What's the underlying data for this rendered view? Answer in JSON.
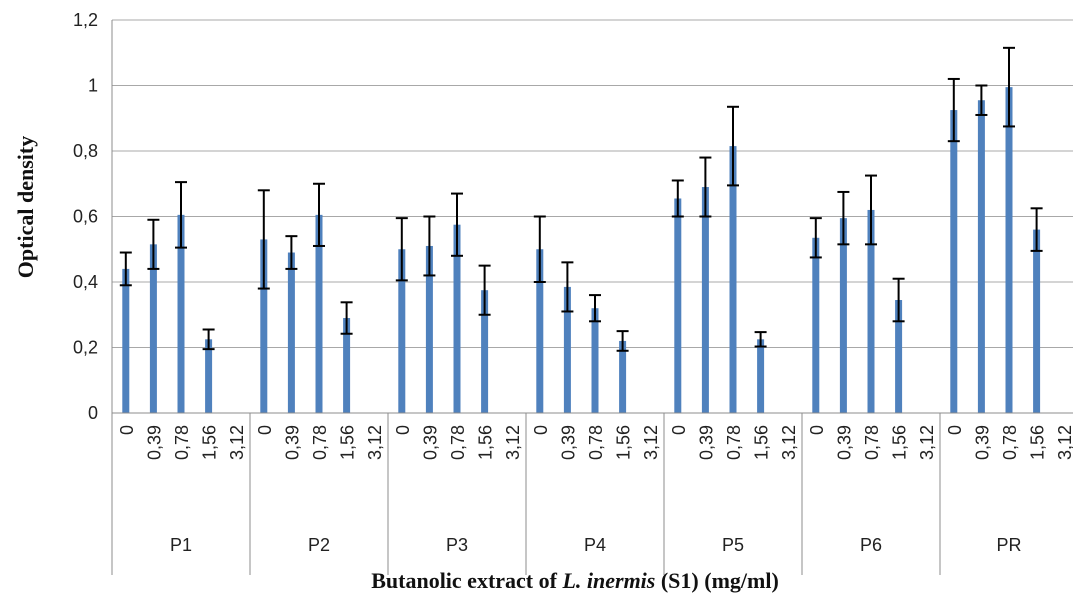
{
  "chart_data": {
    "type": "bar",
    "xlabel": {
      "prefix": "Butanolic extract of ",
      "italic": "L. inermis",
      "suffix": " (S1) (mg/ml)"
    },
    "ylabel": "Optical density",
    "ylim": [
      0,
      1.2
    ],
    "y_ticks": [
      "0",
      "0,2",
      "0,4",
      "0,6",
      "0,8",
      "1",
      "1,2"
    ],
    "grid": true,
    "legend": "none",
    "bar_color": "#4f81bd",
    "error_bar_color": "#000000",
    "concentrations": [
      "0",
      "0,39",
      "0,78",
      "1,56",
      "3,12"
    ],
    "groups": [
      {
        "name": "P1",
        "values": [
          0.44,
          0.515,
          0.605,
          0.225,
          null
        ],
        "errors": [
          0.05,
          0.075,
          0.1,
          0.03,
          null
        ]
      },
      {
        "name": "P2",
        "values": [
          0.53,
          0.49,
          0.605,
          0.29,
          null
        ],
        "errors": [
          0.15,
          0.05,
          0.095,
          0.048,
          null
        ]
      },
      {
        "name": "P3",
        "values": [
          0.5,
          0.51,
          0.575,
          0.375,
          null
        ],
        "errors": [
          0.095,
          0.09,
          0.095,
          0.075,
          null
        ]
      },
      {
        "name": "P4",
        "values": [
          0.5,
          0.385,
          0.32,
          0.22,
          null
        ],
        "errors": [
          0.1,
          0.075,
          0.04,
          0.03,
          null
        ]
      },
      {
        "name": "P5",
        "values": [
          0.655,
          0.69,
          0.815,
          0.225,
          null
        ],
        "errors": [
          0.055,
          0.09,
          0.12,
          0.022,
          null
        ]
      },
      {
        "name": "P6",
        "values": [
          0.535,
          0.595,
          0.62,
          0.345,
          null
        ],
        "errors": [
          0.06,
          0.08,
          0.105,
          0.065,
          null
        ]
      },
      {
        "name": "PR",
        "values": [
          0.925,
          0.955,
          0.995,
          0.56,
          null
        ],
        "errors": [
          0.095,
          0.045,
          0.12,
          0.065,
          null
        ]
      }
    ]
  }
}
